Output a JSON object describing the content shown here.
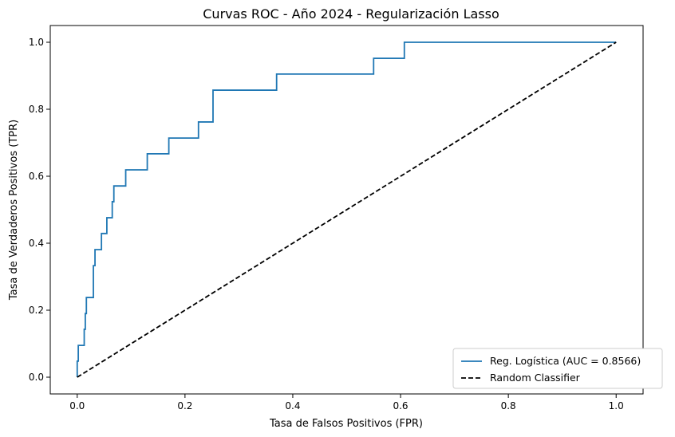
{
  "chart_data": {
    "type": "line",
    "title": "Curvas ROC - Año 2024 - Regularización Lasso",
    "xlabel": "Tasa de Falsos Positivos (FPR)",
    "ylabel": "Tasa de Verdaderos Positivos (TPR)",
    "xlim": [
      -0.05,
      1.05
    ],
    "ylim": [
      -0.05,
      1.05
    ],
    "xticks": [
      0.0,
      0.2,
      0.4,
      0.6,
      0.8,
      1.0
    ],
    "yticks": [
      0.0,
      0.2,
      0.4,
      0.6,
      0.8,
      1.0
    ],
    "xtick_labels": [
      "0.0",
      "0.2",
      "0.4",
      "0.6",
      "0.8",
      "1.0"
    ],
    "ytick_labels": [
      "0.0",
      "0.2",
      "0.4",
      "0.6",
      "0.8",
      "1.0"
    ],
    "grid": false,
    "legend_position": "bottom-right",
    "series": [
      {
        "name": "Reg. Logística (AUC = 0.8566)",
        "color": "#1f77b4",
        "style": "solid",
        "x": [
          0.0,
          0.0,
          0.002,
          0.002,
          0.013,
          0.013,
          0.015,
          0.015,
          0.017,
          0.017,
          0.03,
          0.03,
          0.033,
          0.033,
          0.045,
          0.045,
          0.055,
          0.055,
          0.065,
          0.065,
          0.068,
          0.068,
          0.09,
          0.09,
          0.13,
          0.13,
          0.17,
          0.17,
          0.225,
          0.225,
          0.252,
          0.252,
          0.37,
          0.37,
          0.55,
          0.55,
          0.607,
          0.607,
          1.0
        ],
        "y": [
          0.0,
          0.048,
          0.048,
          0.095,
          0.095,
          0.143,
          0.143,
          0.19,
          0.19,
          0.238,
          0.238,
          0.333,
          0.333,
          0.381,
          0.381,
          0.429,
          0.429,
          0.476,
          0.476,
          0.524,
          0.524,
          0.571,
          0.571,
          0.619,
          0.619,
          0.667,
          0.667,
          0.714,
          0.714,
          0.762,
          0.762,
          0.857,
          0.857,
          0.905,
          0.905,
          0.952,
          0.952,
          1.0,
          1.0
        ]
      },
      {
        "name": "Random Classifier",
        "color": "#000000",
        "style": "dashed",
        "x": [
          0.0,
          1.0
        ],
        "y": [
          0.0,
          1.0
        ]
      }
    ]
  }
}
